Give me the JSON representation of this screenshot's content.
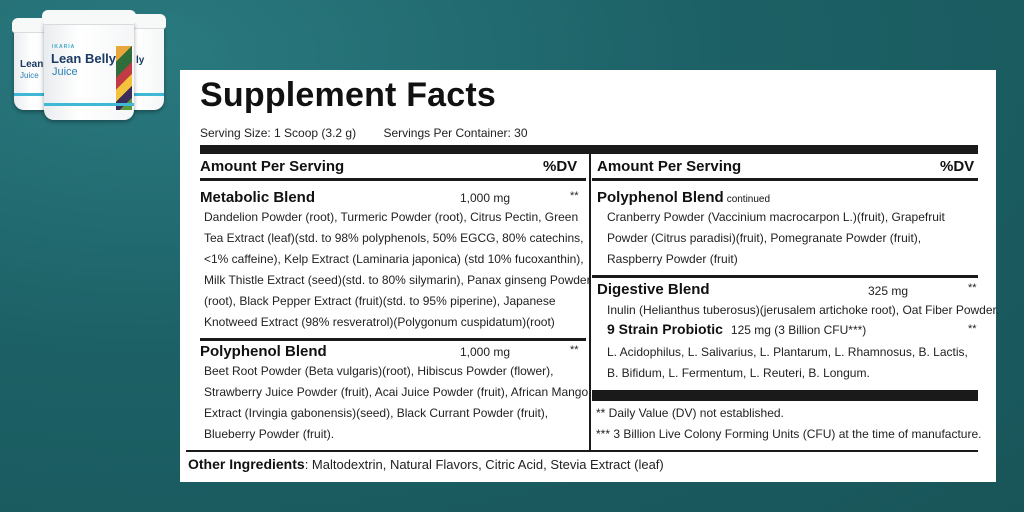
{
  "product": {
    "brand": "IKARIA",
    "name_line1": "Lean Belly",
    "name_line2": "Juice",
    "partial_name": "Lean I",
    "partial_sub": "Juice",
    "partial_right": "ly"
  },
  "facts": {
    "title": "Supplement Facts",
    "serving_size": "Serving Size: 1 Scoop (3.2 g)",
    "servings_per_container": "Servings Per Container: 30"
  },
  "left_column": {
    "header_amount": "Amount Per Serving",
    "header_dv": "%DV",
    "blends": [
      {
        "name": "Metabolic Blend",
        "amount": "1,000 mg",
        "dv": "**",
        "lines": [
          "Dandelion Powder (root), Turmeric Powder (root), Citrus Pectin, Green",
          "Tea Extract (leaf)(std. to 98% polyphenols, 50% EGCG,  80% catechins,",
          "<1% caffeine), Kelp Extract (Laminaria japonica) (std 10% fucoxanthin),",
          "Milk Thistle Extract (seed)(std. to 80% silymarin), Panax ginseng Powder",
          "(root), Black Pepper Extract (fruit)(std. to 95% piperine), Japanese",
          "Knotweed Extract (98% resveratrol)(Polygonum cuspidatum)(root)"
        ]
      },
      {
        "name": "Polyphenol Blend",
        "amount": "1,000 mg",
        "dv": "**",
        "lines": [
          "Beet Root Powder (Beta vulgaris)(root), Hibiscus Powder (flower),",
          "Strawberry Juice Powder (fruit), Acai Juice Powder (fruit), African Mango",
          "Extract (Irvingia gabonensis)(seed), Black Currant Powder (fruit),",
          "Blueberry Powder (fruit)."
        ]
      }
    ]
  },
  "right_column": {
    "header_amount": "Amount Per Serving",
    "header_dv": "%DV",
    "polyphenol_continued": {
      "name": "Polyphenol Blend",
      "continued": "continued",
      "lines": [
        "Cranberry Powder (Vaccinium macrocarpon L.)(fruit), Grapefruit",
        "Powder (Citrus paradisi)(fruit), Pomegranate Powder (fruit),",
        "Raspberry Powder (fruit)"
      ]
    },
    "digestive": {
      "name": "Digestive Blend",
      "amount": "325 mg",
      "dv": "**",
      "lines": [
        "Inulin (Helianthus tuberosus)(jerusalem artichoke root), Oat Fiber Powder."
      ]
    },
    "probiotic": {
      "name": "9 Strain Probiotic",
      "amount": "125 mg (3 Billion CFU***)",
      "dv": "**",
      "lines": [
        "L. Acidophilus, L. Salivarius, L. Plantarum, L. Rhamnosus, B. Lactis,",
        "B. Bifidum, L. Fermentum, L. Reuteri, B. Longum."
      ]
    },
    "footnotes": [
      "** Daily Value (DV) not established.",
      "*** 3 Billion Live Colony Forming Units (CFU) at the time of manufacture."
    ]
  },
  "other_ingredients": {
    "label": "Other Ingredients",
    "value": ": Maltodextrin, Natural Flavors, Citric Acid, Stevia Extract (leaf)"
  },
  "colors": {
    "background": "#1f6368",
    "label_bg": "#ffffff",
    "ink": "#1a1a1a"
  }
}
